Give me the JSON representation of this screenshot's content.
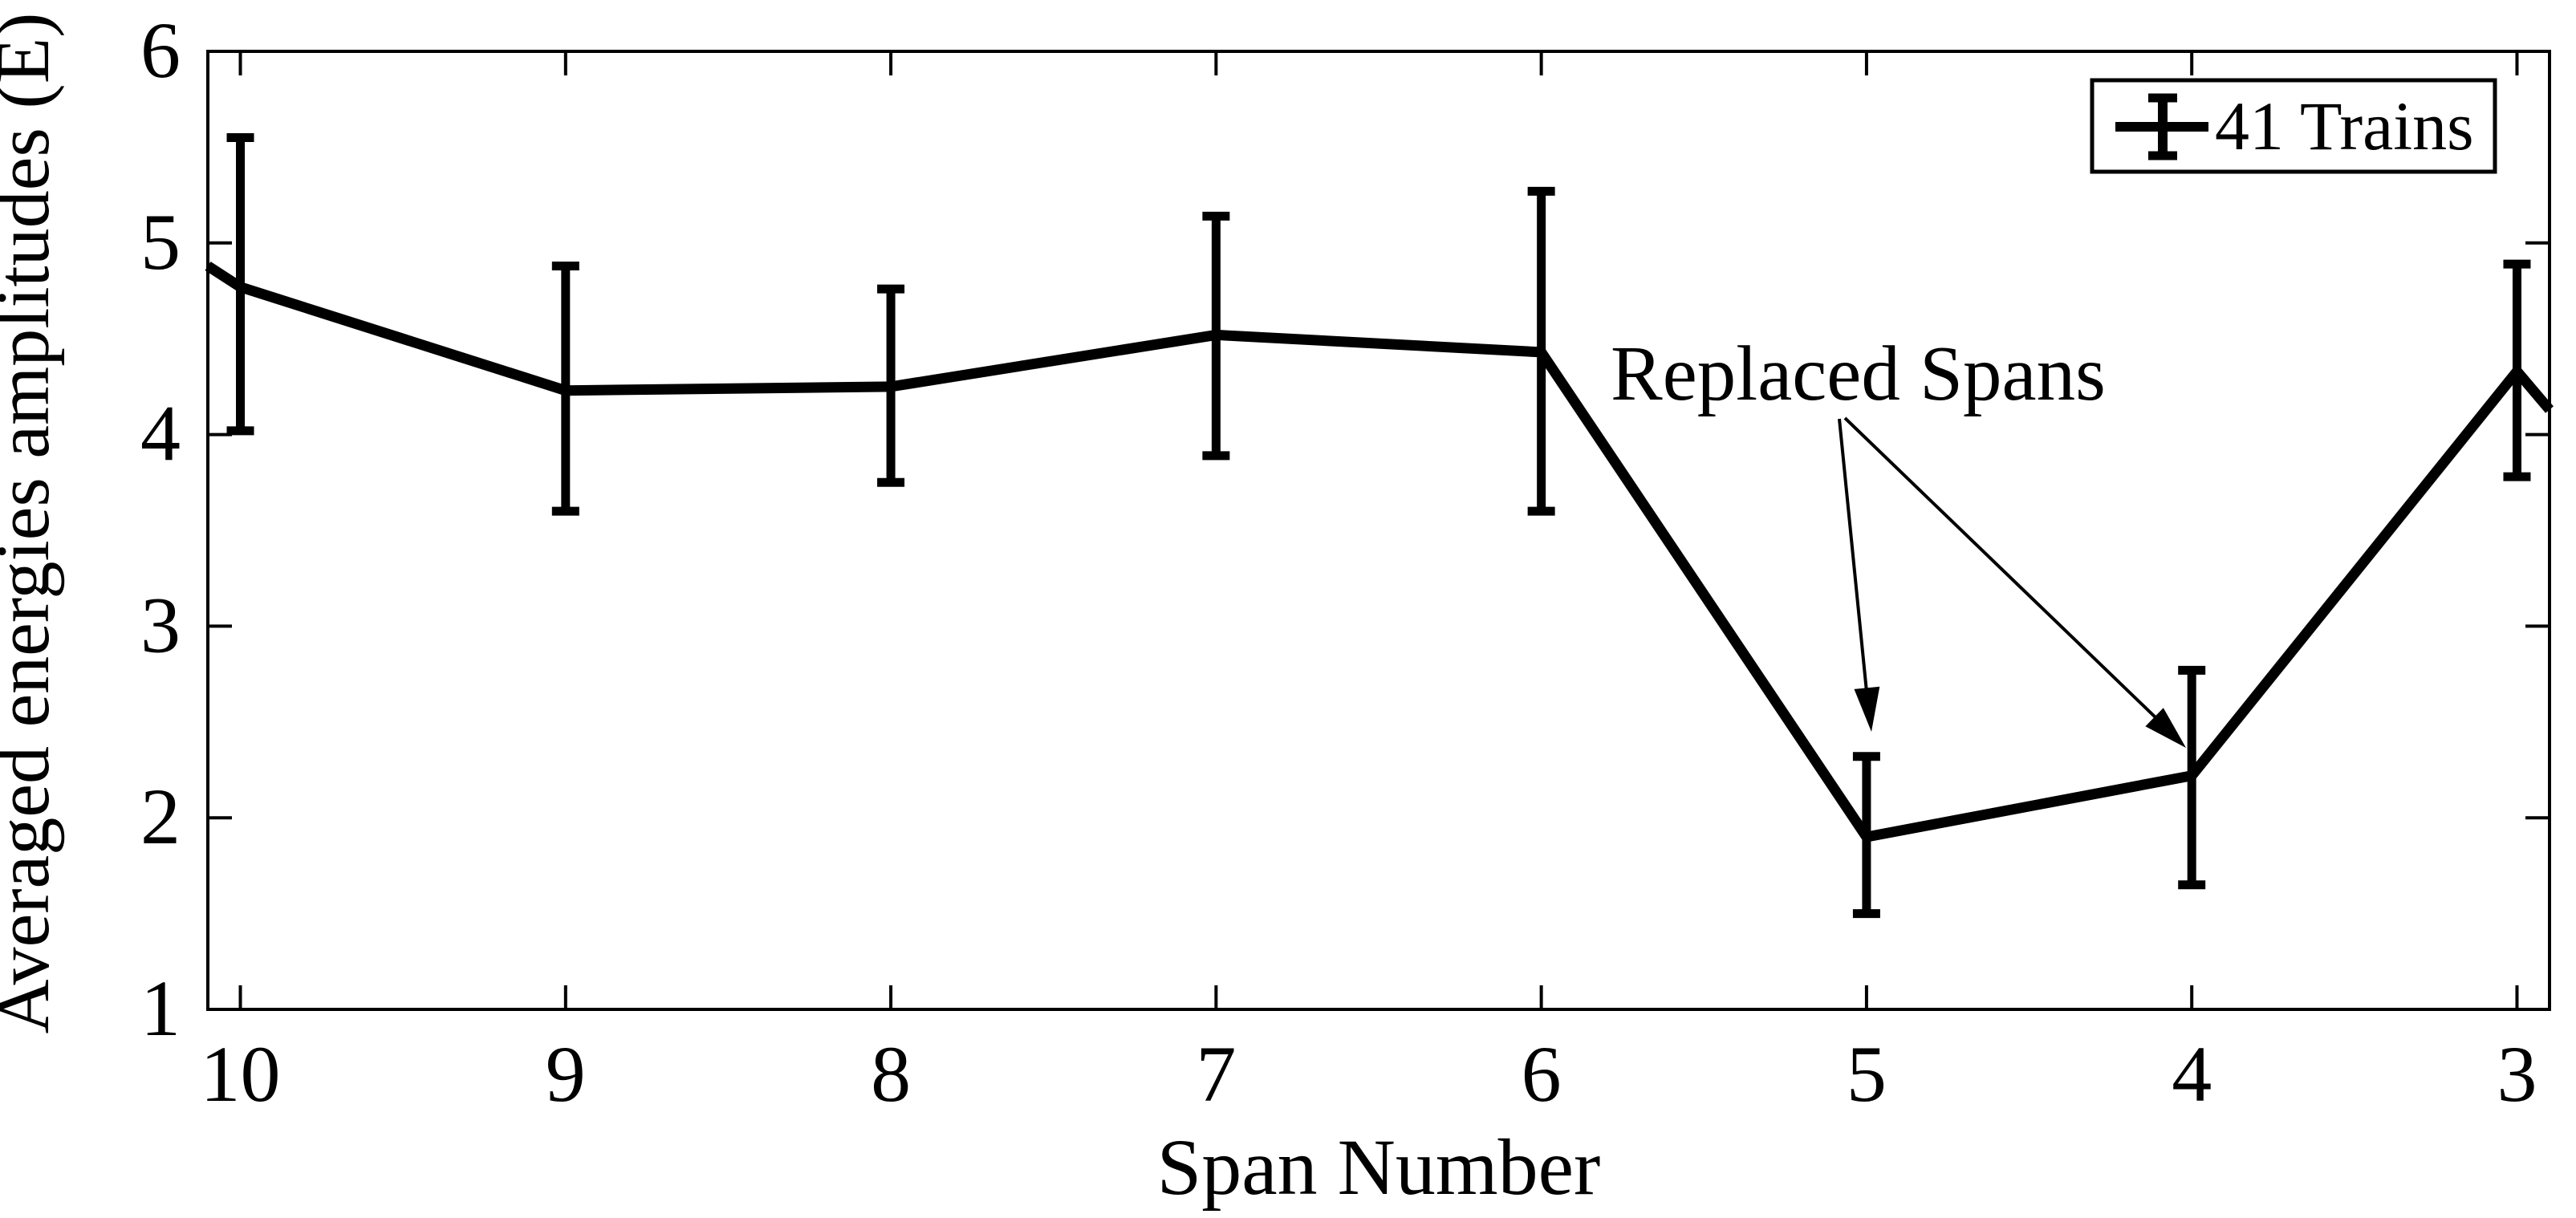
{
  "figure": {
    "background": "#ffffff",
    "ink": "#000000"
  },
  "chart_data": {
    "type": "line",
    "title": "",
    "xlabel": "Span Number",
    "ylabel": "Averaged energies amplitudes (E)",
    "x_reversed": true,
    "xlim": [
      10.1,
      2.9
    ],
    "ylim": [
      1,
      6
    ],
    "xticks": [
      10,
      9,
      8,
      7,
      6,
      5,
      4,
      3
    ],
    "yticks": [
      1,
      2,
      3,
      4,
      5,
      6
    ],
    "grid": false,
    "legend_position": "top-right",
    "series": [
      {
        "name": "41 Trains",
        "marker": "errorbar",
        "color": "#000000",
        "x": [
          10,
          9,
          8,
          7,
          6,
          5,
          4,
          3
        ],
        "y": [
          4.77,
          4.23,
          4.25,
          4.52,
          4.43,
          1.9,
          2.22,
          4.33
        ],
        "err_upper": [
          0.78,
          0.65,
          0.51,
          0.62,
          0.84,
          0.42,
          0.55,
          0.56
        ],
        "err_lower": [
          0.75,
          0.63,
          0.5,
          0.63,
          0.83,
          0.4,
          0.57,
          0.55
        ],
        "edge_left": {
          "x": 10.1,
          "y": 4.88
        },
        "edge_right": {
          "x": 2.9,
          "y": 4.13
        }
      }
    ],
    "annotation": {
      "text": "Replaced Spans",
      "points_to_spans": [
        5,
        4
      ]
    }
  }
}
